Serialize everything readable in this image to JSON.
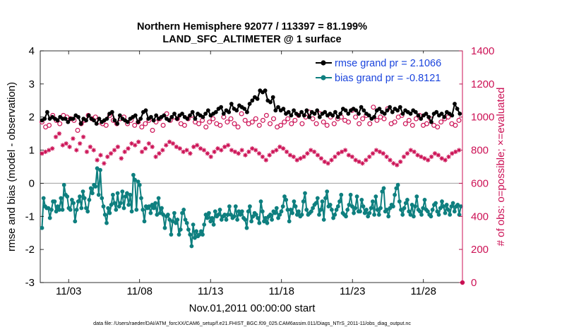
{
  "chart_data": {
    "type": "line",
    "title_line1": "Northern Hemisphere 92077 / 113397 = 81.199%",
    "title_line2": "LAND_SFC_ALTIMETER @ 1 surface",
    "xlabel": "Nov.01,2011 00:00:00 start",
    "ylabel_left": "rmse and bias (model - observation)",
    "ylabel_right": "# of obs: o=possible; ×=evaluated",
    "footnote": "data file: /Users/raeder/DAI/ATM_forcXX/CAM6_setup/f.e21.FHIST_BGC.f09_025.CAM6assim.011/Diags_NTrS_2011-11/obs_diag_output.nc",
    "x_tick_labels": [
      "11/03",
      "11/08",
      "11/13",
      "11/18",
      "11/23",
      "11/28"
    ],
    "x_tick_values": [
      3,
      8,
      13,
      18,
      23,
      28
    ],
    "xlim": [
      1.0,
      30.75
    ],
    "ylim_left": [
      -3,
      4
    ],
    "ylim_right": [
      0,
      1400
    ],
    "y_left_ticks": [
      "-3",
      "-2",
      "-1",
      "0",
      "1",
      "2",
      "3",
      "4"
    ],
    "y_right_ticks": [
      "0",
      "200",
      "400",
      "600",
      "800",
      "1000",
      "1200",
      "1400"
    ],
    "legend": [
      {
        "label": "rmse grand pr = 2.1066",
        "color": "#000000"
      },
      {
        "label": "bias grand pr = -0.8121",
        "color": "#0e7f7f"
      }
    ],
    "colors": {
      "rmse": "#000000",
      "bias": "#0e7f7f",
      "obs": "#cc1155",
      "zero_line": "#aaaaaa",
      "legend_text": "#1a44dd"
    },
    "step_days": 0.25,
    "start_day": 1.125,
    "rmse": [
      1.9,
      1.95,
      2.15,
      1.95,
      2.0,
      1.95,
      1.9,
      2.0,
      1.95,
      1.95,
      1.85,
      1.95,
      1.95,
      2.05,
      2.0,
      1.8,
      1.95,
      1.9,
      2.05,
      1.95,
      1.9,
      1.8,
      1.95,
      1.85,
      1.9,
      1.95,
      2.1,
      2.15,
      1.9,
      1.8,
      2.05,
      1.95,
      1.9,
      1.85,
      1.95,
      2.0,
      2.05,
      1.85,
      1.95,
      2.15,
      2.2,
      1.95,
      2.0,
      1.9,
      2.05,
      1.95,
      2.0,
      2.05,
      1.95,
      1.9,
      2.0,
      2.1,
      1.95,
      2.05,
      2.1,
      2.0,
      1.95,
      2.05,
      2.15,
      1.95,
      2.1,
      2.05,
      2.0,
      2.1,
      2.2,
      2.05,
      2.1,
      2.15,
      2.25,
      2.3,
      2.1,
      2.2,
      2.15,
      2.4,
      2.25,
      2.2,
      2.35,
      2.3,
      2.25,
      2.15,
      2.4,
      2.5,
      2.6,
      2.55,
      2.8,
      2.75,
      2.8,
      2.5,
      2.45,
      2.6,
      2.2,
      2.3,
      2.2,
      2.25,
      2.1,
      2.15,
      2.05,
      2.2,
      2.1,
      2.05,
      2.15,
      2.05,
      2.2,
      2.0,
      2.15,
      2.1,
      2.2,
      2.0,
      2.1,
      2.15,
      2.05,
      2.1,
      2.05,
      2.15,
      2.0,
      2.1,
      2.25,
      2.2,
      2.1,
      2.2,
      2.25,
      2.2,
      2.1,
      2.3,
      2.2,
      2.1,
      2.05,
      1.95,
      2.0,
      2.2,
      2.25,
      2.15,
      2.1,
      2.2,
      2.3,
      2.15,
      2.25,
      2.2,
      2.3,
      2.1,
      2.2,
      2.15,
      2.1,
      2.2,
      2.15,
      2.05,
      1.95,
      2.05,
      2.1,
      2.0,
      1.85,
      2.1,
      2.15,
      2.05,
      2.1,
      2.0,
      2.15,
      2.1,
      2.05,
      2.4,
      2.25,
      2.1
    ],
    "bias": [
      -1.35,
      -0.45,
      -0.7,
      -0.75,
      -0.75,
      -1.05,
      -0.8,
      -0.55,
      -0.55,
      -0.85,
      -0.7,
      -0.8,
      -0.45,
      -0.8,
      -0.05,
      -0.35,
      -0.4,
      -0.75,
      -0.8,
      -0.5,
      -0.6,
      -1.15,
      -0.8,
      -0.55,
      -0.4,
      -0.75,
      -0.25,
      -0.45,
      -0.75,
      -0.85,
      -0.5,
      -0.15,
      -0.3,
      -0.05,
      -0.1,
      0.45,
      -0.35,
      0.4,
      -0.45,
      -0.7,
      -0.95,
      -1.2,
      -0.75,
      -0.9,
      -0.65,
      -0.35,
      -0.6,
      -0.8,
      -0.3,
      -0.7,
      -0.6,
      -0.25,
      -0.75,
      -0.4,
      -0.3,
      -0.65,
      -0.35,
      -0.85,
      0.25,
      0.1,
      -0.8,
      0.05,
      -0.05,
      -0.45,
      -0.8,
      -1.15,
      -0.7,
      -0.75,
      -0.7,
      -0.9,
      -0.65,
      -0.75,
      -0.6,
      -0.95,
      -0.45,
      -0.9,
      -0.75,
      -0.95,
      -1.35,
      -1.0,
      -0.95,
      -1.1,
      -1.55,
      -1.15,
      -0.9,
      -1.2,
      -1.1,
      -1.55,
      -1.4,
      -0.9,
      -0.8,
      -1.1,
      -1.2,
      -1.4,
      -1.55,
      -1.9,
      -1.25,
      -1.65,
      -1.45,
      -1.6,
      -1.55,
      -1.45,
      -1.55,
      -1.25,
      -0.95,
      -1.05,
      -0.9,
      -1.15,
      -1.05,
      -1.25,
      -0.85,
      -1.0,
      -0.95,
      -0.8,
      -1.1,
      -1.0,
      -0.95,
      -1.1,
      -0.95,
      -0.7,
      -0.95,
      -1.05,
      -1.0,
      -0.7,
      -1.1,
      -0.85,
      -0.95,
      -0.85,
      -1.05,
      -1.1,
      -1.35,
      -0.85,
      -0.7,
      -1.15,
      -1.0,
      -0.9,
      -0.95,
      -1.05,
      -1.2,
      -0.55,
      -0.85,
      -1.15,
      -1.05,
      -1.2,
      -1.0,
      -0.95,
      -1.1,
      -0.85,
      -0.9,
      -0.75,
      -1.05,
      -0.95,
      -0.85,
      -0.7,
      -0.4,
      -0.5,
      -0.8,
      -1.15,
      -0.8,
      -0.9,
      -0.55,
      -0.7,
      -0.95,
      -0.85,
      -1.0,
      -0.95,
      -0.55,
      -0.3,
      -0.8,
      -0.95,
      -0.9,
      -0.85,
      -0.75,
      -0.65,
      -0.6,
      -0.45,
      -0.95,
      -0.8,
      -0.55,
      -1.1,
      -0.45,
      -0.25,
      -0.7,
      -0.65,
      -0.8,
      -1.05,
      -0.95,
      -0.8,
      -0.7,
      -0.55,
      -0.35,
      -0.9,
      -0.95,
      -1.0,
      -0.8,
      -0.65,
      -0.35,
      -0.7,
      -0.9,
      -0.75,
      -0.4,
      -0.85,
      -0.85,
      -0.5,
      -0.7,
      -0.9,
      -0.8,
      -1.0,
      -0.9,
      -0.75,
      -0.55,
      -0.95,
      -0.4,
      -0.8,
      -0.95,
      -0.75,
      -0.25,
      -0.15,
      -0.85,
      -0.8,
      -1.0,
      -0.75,
      -0.65,
      -0.7,
      -0.35,
      -0.15,
      -0.05,
      -0.55,
      -0.8,
      -0.95,
      -0.75,
      -0.6,
      -0.5,
      -0.85,
      -0.95,
      -0.65,
      -1.0,
      -0.7,
      -0.4,
      -0.8,
      -0.85,
      -0.95,
      -0.75,
      -0.5,
      -0.8,
      -0.85,
      -0.95,
      -1.0,
      -0.8,
      -0.65,
      -0.6,
      -0.85,
      -0.95,
      -0.75,
      -0.55,
      -0.7,
      -0.9,
      -0.65,
      -0.8,
      -0.95,
      -0.7,
      -0.6,
      -0.85,
      -0.7,
      -0.65,
      -0.95,
      -0.7
    ],
    "possible": [
      970,
      940,
      950,
      1010,
      980,
      960,
      1010,
      1000,
      990,
      980,
      920,
      960,
      980,
      1010,
      990,
      1000,
      970,
      960,
      950,
      1010,
      980,
      960,
      990,
      1000,
      960,
      980,
      950,
      970,
      940,
      960,
      980,
      920,
      970,
      990,
      950,
      1020,
      980,
      1000,
      990,
      960,
      950,
      990,
      1010,
      970,
      960,
      980,
      940,
      970,
      990,
      960,
      950,
      1000,
      970,
      990,
      960,
      940,
      1020,
      980,
      960,
      970,
      990,
      950,
      980,
      1010,
      960,
      990,
      940,
      950,
      970,
      990,
      960,
      980,
      1010,
      960,
      1000,
      1030,
      990,
      960,
      1020,
      970,
      950,
      1000,
      960,
      990,
      1000,
      980,
      970,
      1040,
      1000,
      960,
      990,
      1010,
      960,
      1060,
      980,
      1000,
      990,
      1050,
      960,
      970,
      1000,
      1010,
      960,
      980,
      950,
      990,
      1010,
      950,
      960,
      990,
      950,
      940,
      970,
      990,
      1000,
      960,
      950,
      980
    ],
    "evaluated": [
      780,
      790,
      800,
      810,
      880,
      900,
      830,
      840,
      820,
      870,
      800,
      840,
      880,
      790,
      820,
      800,
      740,
      770,
      720,
      760,
      780,
      800,
      820,
      750,
      790,
      810,
      840,
      830,
      850,
      790,
      810,
      840,
      820,
      760,
      780,
      800,
      830,
      850,
      840,
      820,
      810,
      790,
      800,
      780,
      820,
      830,
      810,
      800,
      780,
      760,
      790,
      810,
      800,
      820,
      830,
      800,
      790,
      780,
      800,
      770,
      790,
      810,
      800,
      780,
      760,
      740,
      770,
      790,
      800,
      820,
      810,
      790,
      770,
      760,
      740,
      750,
      760,
      780,
      800,
      790,
      770,
      750,
      730,
      720,
      740,
      760,
      780,
      790,
      800,
      770,
      760,
      740,
      730,
      720,
      740,
      760,
      780,
      800,
      790,
      780,
      760,
      740,
      720,
      710,
      730,
      760,
      780,
      800,
      790,
      770,
      760,
      750,
      740,
      760,
      780,
      770,
      750,
      740,
      760,
      780,
      790,
      800
    ]
  }
}
